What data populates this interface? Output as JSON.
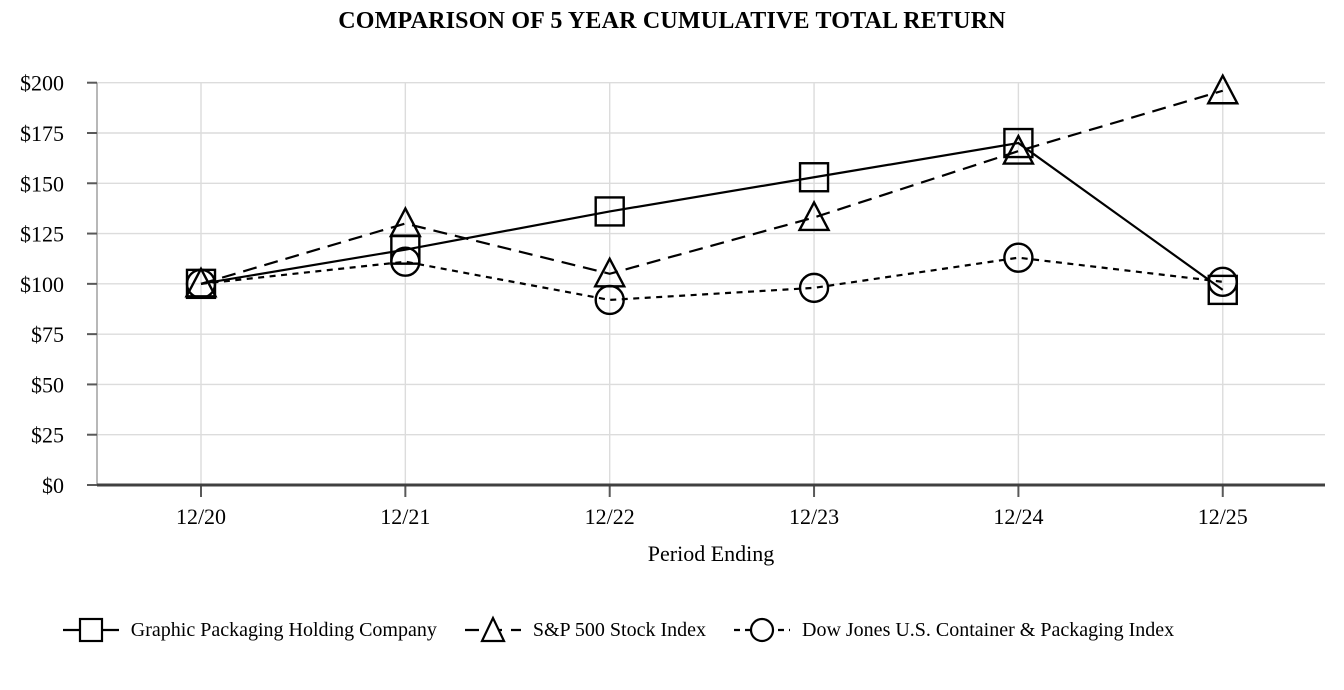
{
  "chart_data": {
    "type": "line",
    "title": "COMPARISON OF 5 YEAR CUMULATIVE TOTAL RETURN",
    "xlabel": "Period Ending",
    "ylabel": "",
    "categories": [
      "12/20",
      "12/21",
      "12/22",
      "12/23",
      "12/24",
      "12/25"
    ],
    "ylim": [
      0,
      200
    ],
    "ytick_step": 25,
    "ytick_labels": [
      "$0",
      "$25",
      "$50",
      "$75",
      "$100",
      "$125",
      "$150",
      "$175",
      "$200"
    ],
    "grid": true,
    "legend_position": "bottom",
    "series": [
      {
        "name": "Graphic Packaging Holding Company",
        "marker": "square",
        "line_style": "solid",
        "values": [
          100,
          117,
          136,
          153,
          170,
          97
        ]
      },
      {
        "name": "S&P 500 Stock Index",
        "marker": "triangle",
        "line_style": "long-dash",
        "values": [
          100,
          130,
          105,
          133,
          166,
          196
        ]
      },
      {
        "name": "Dow Jones U.S. Container & Packaging Index",
        "marker": "circle",
        "line_style": "short-dash",
        "values": [
          100,
          111,
          92,
          98,
          113,
          101
        ]
      }
    ],
    "colors": {
      "series_line": "#000000",
      "marker_fill": "none",
      "gridline": "#dcdcdc",
      "y_axis_line": "#a6a6a6",
      "baseline": "#404040",
      "tick": "#595959",
      "text": "#000000",
      "background": "#ffffff"
    }
  }
}
